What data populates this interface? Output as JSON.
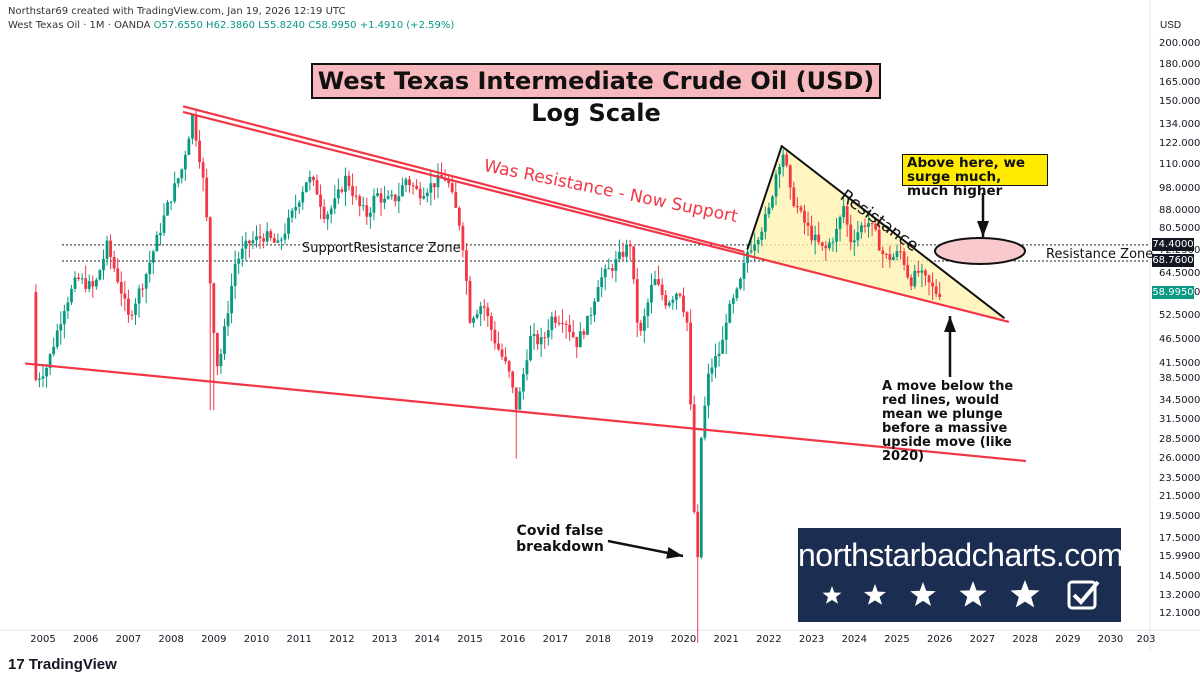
{
  "header": {
    "credit": "Northstar69 created with TradingView.com, Jan 19, 2026 12:19 UTC",
    "symbol": "West Texas Oil · 1M · OANDA",
    "ohlc": "O57.6550  H62.3860  L55.8240  C58.9950",
    "change": "+1.4910 (+2.59%)"
  },
  "title": "West Texas Intermediate Crude Oil (USD) Log Scale",
  "annotations": {
    "was_resistance": "Was Resistance - Now Support",
    "support_zone": "SupportResistance Zone",
    "resistance": "Resistance",
    "resistance_zone": "Resistance Zone",
    "above_here": "Above here, we surge much, much higher",
    "move_below": "A move below the red lines, would mean we plunge before a massive upside move (like 2020)",
    "covid": "Covid false breakdown"
  },
  "watermark": {
    "text": "northstarbadcharts.com"
  },
  "footer": {
    "brand": "TradingView"
  },
  "colors": {
    "up": "#089981",
    "down": "#f23645",
    "trend": "#f23645",
    "wedge_fill": "#fff3b0",
    "title_bg": "#f7b9bd",
    "note_bg": "#ffeb00"
  },
  "chart_data": {
    "type": "candlestick",
    "scale": "log",
    "unit": "USD",
    "y_ticks": [
      200,
      180,
      165,
      150,
      134,
      122,
      110,
      98,
      88,
      80.5,
      72.25,
      64.5,
      58.75,
      52.5,
      46.5,
      41.5,
      38.5,
      34.5,
      31.5,
      28.5,
      26,
      23.5,
      21.5,
      19.5,
      17.5,
      15.99,
      14.5,
      13.2,
      12.1
    ],
    "y_tick_labels": [
      "200.0000",
      "180.0000",
      "165.0000",
      "150.0000",
      "134.0000",
      "122.0000",
      "110.0000",
      "98.0000",
      "88.0000",
      "80.5000",
      "72.2500",
      "64.5000",
      "58.7500",
      "52.5000",
      "46.5000",
      "41.5000",
      "38.5000",
      "34.5000",
      "31.5000",
      "28.5000",
      "26.0000",
      "23.5000",
      "21.5000",
      "19.5000",
      "17.5000",
      "15.9900",
      "14.5000",
      "13.2000",
      "12.1000"
    ],
    "x_ticks": [
      "2005",
      "2006",
      "2007",
      "2008",
      "2009",
      "2010",
      "2011",
      "2012",
      "2013",
      "2014",
      "2015",
      "2016",
      "2017",
      "2018",
      "2019",
      "2020",
      "2021",
      "2022",
      "2023",
      "2024",
      "2025",
      "2026",
      "2027",
      "2028",
      "2029",
      "2030",
      "203"
    ],
    "price_tags": [
      {
        "label": "74.4000",
        "value": 74.4,
        "style": "dark"
      },
      {
        "label": "68.7600",
        "value": 68.76,
        "style": "dark"
      },
      {
        "label": "58.9950",
        "value": 58.995,
        "style": "current"
      }
    ],
    "series": [
      {
        "name": "2004-2008",
        "points": [
          [
            2004.8,
            38
          ],
          [
            2005.1,
            41
          ],
          [
            2005.5,
            55
          ],
          [
            2005.8,
            63
          ],
          [
            2006.2,
            60
          ],
          [
            2006.5,
            74
          ],
          [
            2006.8,
            61
          ],
          [
            2007.0,
            52
          ],
          [
            2007.4,
            64
          ],
          [
            2007.7,
            78
          ],
          [
            2007.95,
            92
          ],
          [
            2008.25,
            108
          ],
          [
            2008.5,
            140
          ],
          [
            2008.65,
            118
          ],
          [
            2008.8,
            95
          ],
          [
            2008.95,
            55
          ],
          [
            2009.1,
            40
          ]
        ]
      },
      {
        "name": "2009-2014",
        "points": [
          [
            2009.1,
            40
          ],
          [
            2009.3,
            52
          ],
          [
            2009.5,
            68
          ],
          [
            2009.8,
            75
          ],
          [
            2010.2,
            78
          ],
          [
            2010.5,
            74
          ],
          [
            2010.8,
            85
          ],
          [
            2011.2,
            104
          ],
          [
            2011.4,
            98
          ],
          [
            2011.6,
            86
          ],
          [
            2011.8,
            90
          ],
          [
            2012.1,
            104
          ],
          [
            2012.4,
            90
          ],
          [
            2012.6,
            86
          ],
          [
            2012.8,
            96
          ],
          [
            2013.0,
            92
          ],
          [
            2013.3,
            94
          ],
          [
            2013.5,
            103
          ],
          [
            2013.8,
            96
          ],
          [
            2014.1,
            100
          ],
          [
            2014.4,
            104
          ],
          [
            2014.5,
            100
          ],
          [
            2014.8,
            80
          ],
          [
            2015.0,
            52
          ]
        ]
      },
      {
        "name": "2015-2020",
        "points": [
          [
            2015.0,
            52
          ],
          [
            2015.3,
            56
          ],
          [
            2015.6,
            46
          ],
          [
            2015.9,
            40
          ],
          [
            2016.1,
            33
          ],
          [
            2016.4,
            47
          ],
          [
            2016.7,
            46
          ],
          [
            2016.9,
            52
          ],
          [
            2017.2,
            52
          ],
          [
            2017.5,
            46
          ],
          [
            2017.8,
            52
          ],
          [
            2018.0,
            62
          ],
          [
            2018.4,
            68
          ],
          [
            2018.75,
            75
          ],
          [
            2018.9,
            52
          ],
          [
            2019.0,
            48
          ],
          [
            2019.3,
            63
          ],
          [
            2019.6,
            56
          ],
          [
            2019.9,
            60
          ],
          [
            2020.1,
            50
          ],
          [
            2020.25,
            20
          ],
          [
            2020.3,
            16
          ],
          [
            2020.4,
            28
          ],
          [
            2020.6,
            40
          ],
          [
            2020.9,
            45
          ],
          [
            2021.0,
            52
          ]
        ]
      },
      {
        "name": "2021-2026",
        "points": [
          [
            2021.0,
            52
          ],
          [
            2021.3,
            60
          ],
          [
            2021.5,
            72
          ],
          [
            2021.8,
            80
          ],
          [
            2022.0,
            88
          ],
          [
            2022.2,
            110
          ],
          [
            2022.35,
            118
          ],
          [
            2022.5,
            96
          ],
          [
            2022.8,
            84
          ],
          [
            2023.0,
            78
          ],
          [
            2023.3,
            72
          ],
          [
            2023.6,
            80
          ],
          [
            2023.75,
            90
          ],
          [
            2023.9,
            76
          ],
          [
            2024.1,
            80
          ],
          [
            2024.3,
            84
          ],
          [
            2024.5,
            78
          ],
          [
            2024.7,
            70
          ],
          [
            2024.9,
            70
          ],
          [
            2025.1,
            72
          ],
          [
            2025.3,
            62
          ],
          [
            2025.5,
            65
          ],
          [
            2025.7,
            62
          ],
          [
            2025.9,
            59
          ],
          [
            2026.05,
            58.995
          ]
        ]
      }
    ],
    "trendlines": [
      {
        "name": "upper-resistance-1",
        "from": [
          2008.3,
          147
        ],
        "to": [
          2021.4,
          72
        ]
      },
      {
        "name": "upper-resistance-2",
        "from": [
          2008.3,
          143
        ],
        "to": [
          2027.6,
          51
        ]
      },
      {
        "name": "lower-long-support",
        "from": [
          2004.6,
          41.5
        ],
        "to": [
          2028.0,
          25.7
        ]
      },
      {
        "name": "wedge-upper",
        "from": [
          2022.3,
          121
        ],
        "to": [
          2027.5,
          52
        ]
      },
      {
        "name": "wedge-left",
        "from": [
          2021.5,
          73
        ],
        "to": [
          2022.3,
          121
        ]
      }
    ],
    "zones": [
      {
        "name": "support-resistance-upper",
        "value": 74.4
      },
      {
        "name": "support-resistance-lower",
        "value": 68.76
      }
    ]
  }
}
